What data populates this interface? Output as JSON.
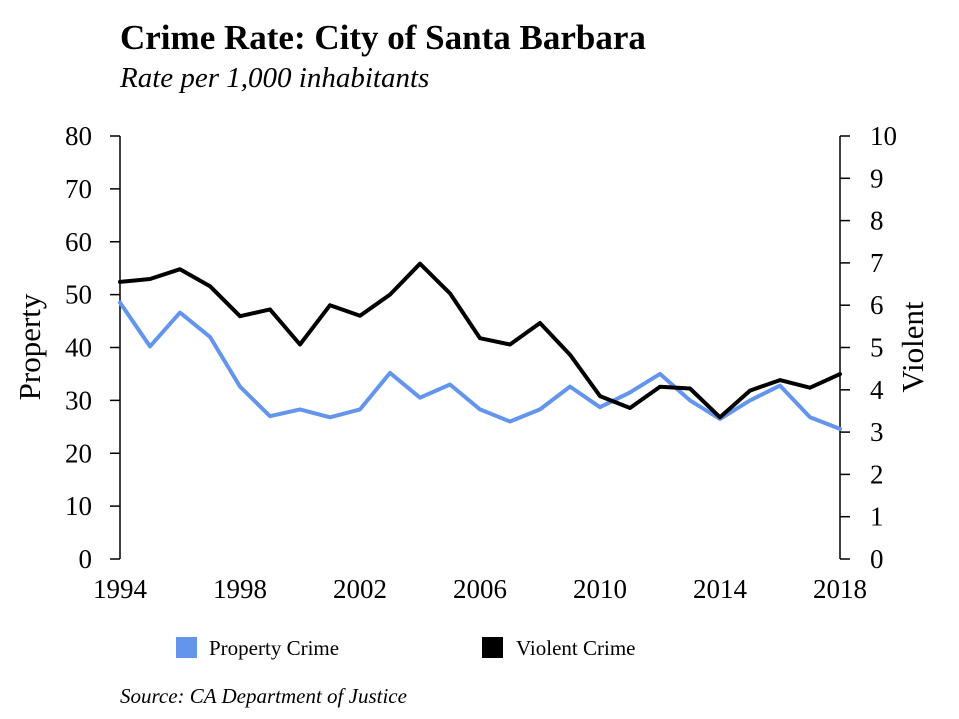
{
  "title": "Crime Rate: City of Santa Barbara",
  "subtitle": "Rate per 1,000 inhabitants",
  "source": "Source: CA Department of Justice",
  "chart_data": {
    "type": "line",
    "title": "Crime Rate: City of Santa Barbara",
    "subtitle": "Rate per 1,000 inhabitants",
    "ylabel_left": "Property",
    "ylabel_right": "Violent",
    "xlabel": "",
    "x": [
      1994,
      1995,
      1996,
      1997,
      1998,
      1999,
      2000,
      2001,
      2002,
      2003,
      2004,
      2005,
      2006,
      2007,
      2008,
      2009,
      2010,
      2011,
      2012,
      2013,
      2014,
      2015,
      2016,
      2017,
      2018
    ],
    "xlim": [
      1994,
      2018
    ],
    "xticks": [
      "1994",
      "1998",
      "2002",
      "2006",
      "2010",
      "2014",
      "2018"
    ],
    "ylim_left": [
      0,
      80
    ],
    "yticks_left": [
      "0",
      "10",
      "20",
      "30",
      "40",
      "50",
      "60",
      "70",
      "80"
    ],
    "ylim_right": [
      0,
      10
    ],
    "yticks_right": [
      "0",
      "1",
      "2",
      "3",
      "4",
      "5",
      "6",
      "7",
      "8",
      "9",
      "10"
    ],
    "series": [
      {
        "name": "Property Crime",
        "axis": "left",
        "color": "#6495ed",
        "values": [
          48.5,
          40.2,
          46.6,
          42.0,
          32.6,
          27.0,
          28.3,
          26.8,
          28.3,
          35.2,
          30.5,
          33.0,
          28.3,
          26.0,
          28.3,
          32.6,
          28.7,
          31.5,
          35.0,
          30.0,
          26.5,
          30.0,
          32.8,
          26.8,
          24.6
        ]
      },
      {
        "name": "Violent Crime",
        "axis": "right",
        "color": "#000000",
        "values": [
          6.55,
          6.62,
          6.85,
          6.45,
          5.74,
          5.9,
          5.07,
          6.0,
          5.75,
          6.25,
          6.98,
          6.28,
          5.22,
          5.07,
          5.58,
          4.83,
          3.85,
          3.57,
          4.07,
          4.03,
          3.35,
          3.98,
          4.23,
          4.05,
          4.37
        ]
      }
    ],
    "legend": [
      "Property Crime",
      "Violent Crime"
    ],
    "legend_position": "bottom",
    "grid": false
  }
}
